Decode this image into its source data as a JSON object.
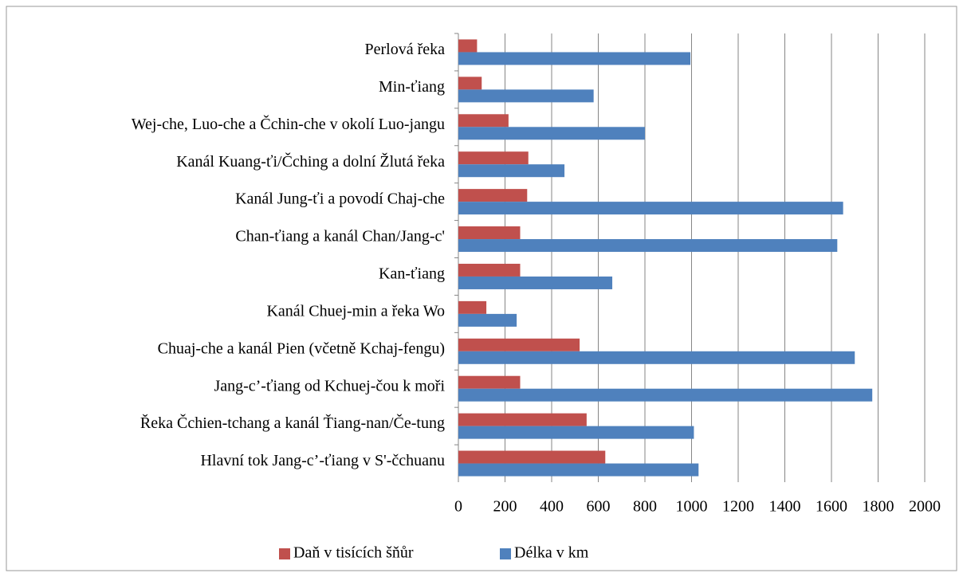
{
  "chart_data": {
    "type": "hbar",
    "categories": [
      "Perlová řeka",
      "Min-ťiang",
      "Wej-che, Luo-che a Čchin-che v okolí Luo-jangu",
      "Kanál Kuang-ťi/Čching a dolní Žlutá řeka",
      "Kanál Jung-ťi a povodí Chaj-che",
      "Chan-ťiang a kanál Chan/Jang-c'",
      "Kan-ťiang",
      "Kanál Chuej-min a řeka Wo",
      "Chuaj-che a kanál Pien (včetně Kchaj-fengu)",
      "Jang-c’-ťiang od Kchuej-čou k moři",
      "Řeka Čchien-tchang a kanál Ťiang-nan/Če-tung",
      "Hlavní tok Jang-c’-ťiang v S'-čchuanu"
    ],
    "series": [
      {
        "name": "Daň v tisících šňůr",
        "color": "#c0504d",
        "values": [
          80,
          100,
          215,
          300,
          295,
          265,
          265,
          120,
          520,
          265,
          550,
          630
        ]
      },
      {
        "name": "Délka v km",
        "color": "#4f81bd",
        "values": [
          995,
          580,
          800,
          455,
          1650,
          1625,
          660,
          250,
          1700,
          1775,
          1010,
          1030
        ]
      }
    ],
    "xlim": [
      0,
      2000
    ],
    "xticks": [
      0,
      200,
      400,
      600,
      800,
      1000,
      1200,
      1400,
      1600,
      1800,
      2000
    ],
    "grid": true,
    "legend": "bottom"
  }
}
